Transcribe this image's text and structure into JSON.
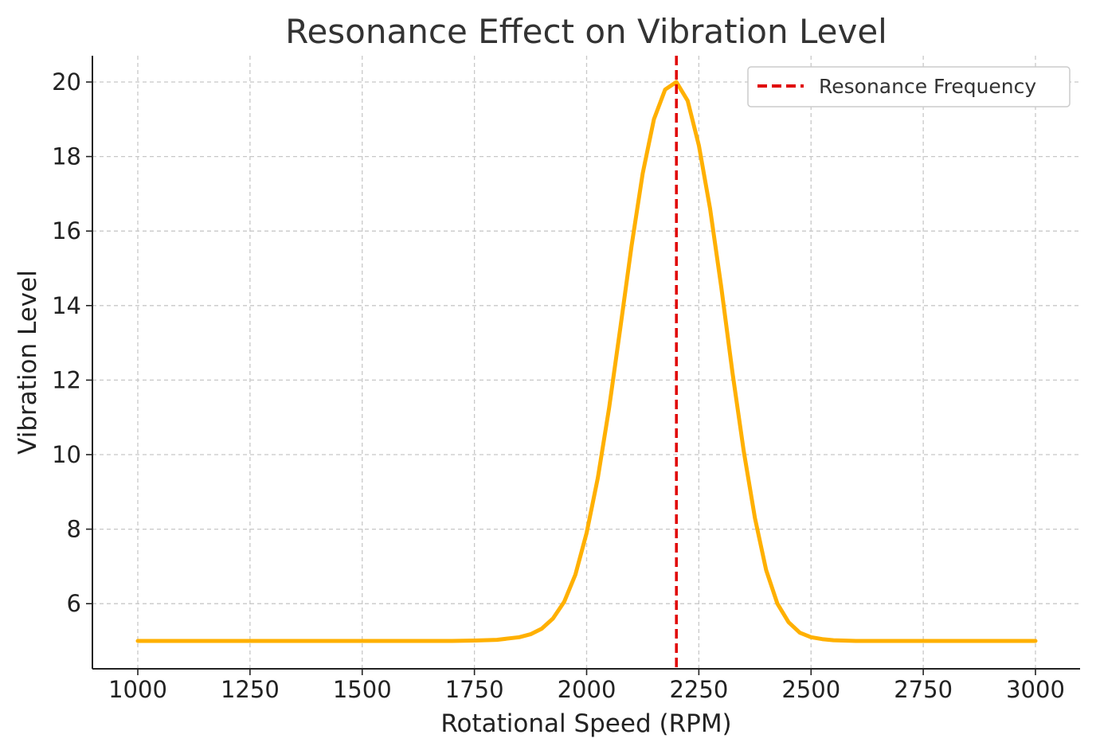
{
  "chart_data": {
    "type": "line",
    "title": "Resonance Effect on Vibration Level",
    "xlabel": "Rotational Speed (RPM)",
    "ylabel": "Vibration Level",
    "xlim": [
      900,
      3000
    ],
    "ylim": [
      4.3,
      20.7
    ],
    "xticks": [
      1000,
      1250,
      1500,
      1750,
      2000,
      2250,
      2500,
      2750,
      3000
    ],
    "yticks": [
      6,
      8,
      10,
      12,
      14,
      16,
      18,
      20
    ],
    "grid": true,
    "legend_placement": "top-right",
    "series": [
      {
        "color": "#FFB000",
        "x": [
          1000,
          1250,
          1500,
          1700,
          1750,
          1800,
          1850,
          1875,
          1900,
          1925,
          1950,
          1975,
          2000,
          2025,
          2050,
          2075,
          2100,
          2125,
          2150,
          2175,
          2200,
          2225,
          2250,
          2275,
          2300,
          2325,
          2350,
          2375,
          2400,
          2425,
          2450,
          2475,
          2500,
          2525,
          2550,
          2600,
          2650,
          2700,
          2750,
          3000
        ],
        "values": [
          5.0,
          5.0,
          5.0,
          5.0,
          5.01,
          5.03,
          5.1,
          5.18,
          5.33,
          5.6,
          6.05,
          6.78,
          7.9,
          9.38,
          11.25,
          13.4,
          15.6,
          17.55,
          19.0,
          19.8,
          20.0,
          19.5,
          18.3,
          16.6,
          14.5,
          12.2,
          10.1,
          8.3,
          6.9,
          6.0,
          5.5,
          5.22,
          5.1,
          5.05,
          5.02,
          5.0,
          5.0,
          5.0,
          5.0,
          5.0
        ]
      }
    ],
    "reference_lines": [
      {
        "orientation": "vertical",
        "x": 2200,
        "name": "Resonance Frequency",
        "color": "#E00000",
        "style": "dashed"
      }
    ]
  }
}
